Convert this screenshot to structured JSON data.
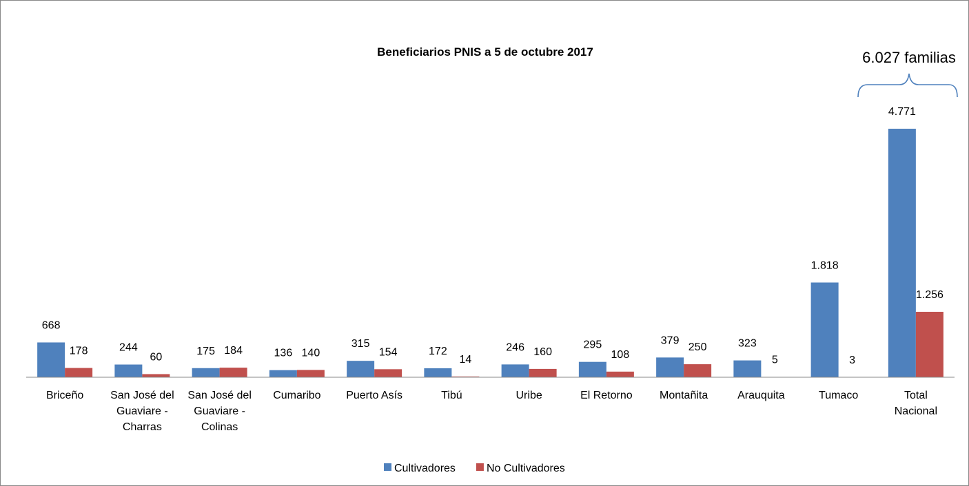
{
  "chart_data": {
    "type": "bar",
    "title": "Beneficiarios PNIS a 5 de octubre 2017",
    "categories": [
      "Briceño",
      "San José del Guaviare - Charras",
      "San José del Guaviare - Colinas",
      "Cumaribo",
      "Puerto Asís",
      "Tibú",
      "Uribe",
      "El Retorno",
      "Montañita",
      "Arauquita",
      "Tumaco",
      "Total Nacional"
    ],
    "series": [
      {
        "name": "Cultivadores",
        "color": "#4f81bd",
        "values": [
          668,
          244,
          175,
          136,
          315,
          172,
          246,
          295,
          379,
          323,
          1818,
          4771
        ],
        "value_labels": [
          "668",
          "244",
          "175",
          "136",
          "315",
          "172",
          "246",
          "295",
          "379",
          "323",
          "1.818",
          "4.771"
        ]
      },
      {
        "name": "No Cultivadores",
        "color": "#c0504d",
        "values": [
          178,
          60,
          184,
          140,
          154,
          14,
          160,
          108,
          250,
          5,
          3,
          1256
        ],
        "value_labels": [
          "178",
          "60",
          "184",
          "140",
          "154",
          "14",
          "160",
          "108",
          "250",
          "5",
          "3",
          "1.256"
        ]
      }
    ],
    "ylim": [
      0,
      6000
    ],
    "annotations": [
      "6.027 familias"
    ],
    "legend": "bottom"
  }
}
